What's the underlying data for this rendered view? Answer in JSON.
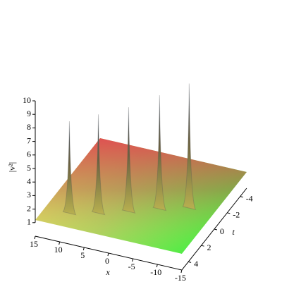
{
  "chart_data": {
    "type": "surface",
    "xlabel": "x",
    "tlabel": "t",
    "zlabel": "|v²|",
    "xlim": [
      -15,
      15
    ],
    "xticks": [
      15,
      10,
      5,
      0,
      -5,
      -10,
      -15
    ],
    "tlim": [
      -5,
      5
    ],
    "tticks": [
      4,
      2,
      0,
      -2,
      -4
    ],
    "zlim": [
      1,
      10
    ],
    "zticks": [
      1,
      2,
      3,
      4,
      5,
      6,
      7,
      8,
      9,
      10
    ],
    "base": 1.2,
    "peaks": [
      {
        "x": -10,
        "t": 0.1,
        "z": 10.4
      },
      {
        "x": -5,
        "t": 0.9,
        "z": 9.6
      },
      {
        "x": 0,
        "t": 1.9,
        "z": 8.9
      },
      {
        "x": 5,
        "t": 2.8,
        "z": 8.5
      },
      {
        "x": 10,
        "t": 3.5,
        "z": 8.0
      }
    ]
  }
}
